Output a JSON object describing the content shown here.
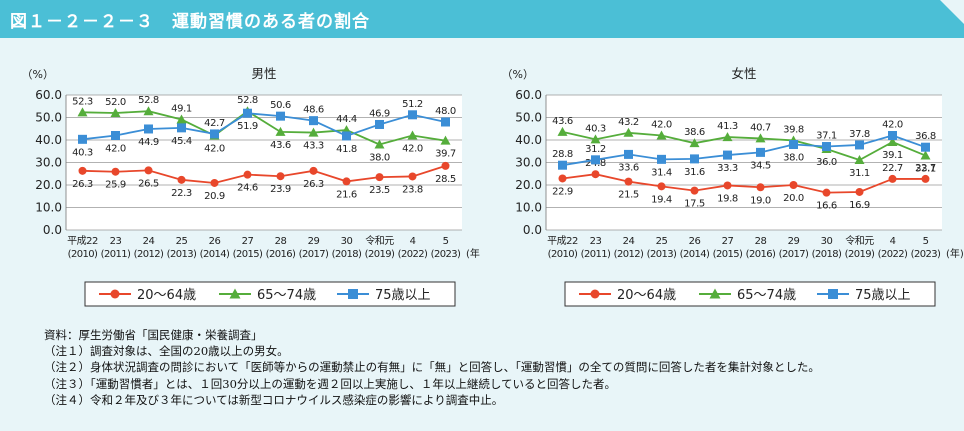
{
  "figure_title": "図１－２－２－３　運動習慣のある者の割合",
  "colors": {
    "header": "#4bbfd6",
    "series_20_64": "#e8472b",
    "series_65_74": "#55ad3b",
    "series_75": "#3b8ed6"
  },
  "notes": [
    "資料：厚生労働省「国民健康・栄養調査」",
    "（注１）調査対象は、全国の20歳以上の男女。",
    "（注２）身体状況調査の問診において「医師等からの運動禁止の有無」に「無」と回答し、「運動習慣」の全ての質問に回答した者を集計対象とした。",
    "（注３）「運動習慣者」とは、１回30分以上の運動を週２回以上実施し、１年以上継続していると回答した者。",
    "（注４）令和２年及び３年については新型コロナウイルス感染症の影響により調査中止。"
  ],
  "chart_data": [
    {
      "type": "line",
      "title": "男性",
      "ylabel": "（%）",
      "xunit": "(年)",
      "ylim": [
        0,
        60
      ],
      "yticks": [
        "0.0",
        "10.0",
        "20.0",
        "30.0",
        "40.0",
        "50.0",
        "60.0"
      ],
      "categories": [
        "平成22",
        "23",
        "24",
        "25",
        "26",
        "27",
        "28",
        "29",
        "30",
        "令和元",
        "4",
        "5"
      ],
      "categories_sub": [
        "(2010)",
        "(2011)",
        "(2012)",
        "(2013)",
        "(2014)",
        "(2015)",
        "(2016)",
        "(2017)",
        "(2018)",
        "(2019)",
        "(2022)",
        "(2023)"
      ],
      "legend_position": "bottom",
      "series": [
        {
          "name": "20～64歳",
          "marker": "circle",
          "values": [
            26.3,
            25.9,
            26.5,
            22.3,
            20.9,
            24.6,
            23.9,
            26.3,
            21.6,
            23.5,
            23.8,
            28.5
          ]
        },
        {
          "name": "65～74歳",
          "marker": "triangle",
          "values": [
            52.3,
            52.0,
            52.8,
            49.1,
            42.0,
            52.8,
            43.6,
            43.3,
            44.4,
            38.0,
            42.0,
            39.7
          ]
        },
        {
          "name": "75歳以上",
          "marker": "square",
          "values": [
            40.3,
            42.0,
            44.9,
            45.4,
            42.7,
            51.9,
            50.6,
            48.6,
            41.8,
            46.9,
            51.2,
            48.0
          ]
        }
      ]
    },
    {
      "type": "line",
      "title": "女性",
      "ylabel": "（%）",
      "xunit": "(年)",
      "ylim": [
        0,
        60
      ],
      "yticks": [
        "0.0",
        "10.0",
        "20.0",
        "30.0",
        "40.0",
        "50.0",
        "60.0"
      ],
      "categories": [
        "平成22",
        "23",
        "24",
        "25",
        "26",
        "27",
        "28",
        "29",
        "30",
        "令和元",
        "4",
        "5"
      ],
      "categories_sub": [
        "(2010)",
        "(2011)",
        "(2012)",
        "(2013)",
        "(2014)",
        "(2015)",
        "(2016)",
        "(2017)",
        "(2018)",
        "(2019)",
        "(2022)",
        "(2023)"
      ],
      "legend_position": "bottom",
      "series": [
        {
          "name": "20～64歳",
          "marker": "circle",
          "values": [
            22.9,
            24.8,
            21.5,
            19.4,
            17.5,
            19.8,
            19.0,
            20.0,
            16.6,
            16.9,
            22.7,
            22.7
          ]
        },
        {
          "name": "65～74歳",
          "marker": "triangle",
          "values": [
            43.6,
            40.3,
            43.2,
            42.0,
            38.6,
            41.3,
            40.7,
            39.8,
            36.0,
            31.1,
            39.1,
            33.1
          ]
        },
        {
          "name": "75歳以上",
          "marker": "square",
          "values": [
            28.8,
            31.2,
            33.6,
            31.4,
            31.6,
            33.3,
            34.5,
            38.0,
            37.1,
            37.8,
            42.0,
            36.8
          ]
        }
      ]
    }
  ]
}
